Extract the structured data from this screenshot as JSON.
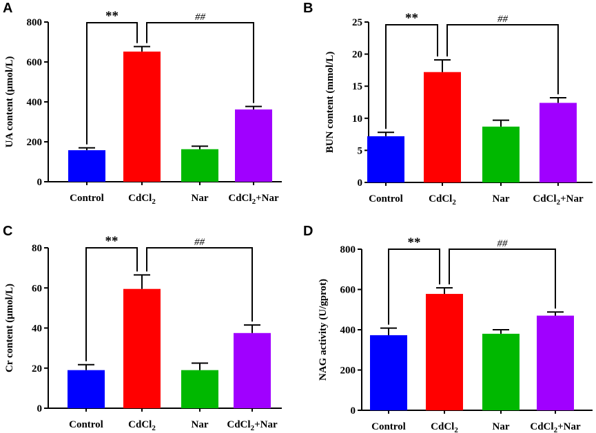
{
  "figure": {
    "bar_colors": [
      "#0000ff",
      "#ff0000",
      "#00b800",
      "#a000ff"
    ]
  },
  "chart_data": [
    {
      "panel": "A",
      "type": "bar",
      "ylabel": "UA content (μmol/L)",
      "categories": [
        {
          "main": "Control",
          "sub": "",
          "tail": ""
        },
        {
          "main": "CdCl",
          "sub": "2",
          "tail": ""
        },
        {
          "main": "Nar",
          "sub": "",
          "tail": ""
        },
        {
          "main": "CdCl",
          "sub": "2",
          "tail": "+Nar"
        }
      ],
      "values": [
        158,
        652,
        163,
        362
      ],
      "errors": [
        12,
        25,
        15,
        15
      ],
      "ylim": [
        0,
        800
      ],
      "yticks": [
        0,
        200,
        400,
        600,
        800
      ],
      "significance": [
        {
          "from": 0,
          "to": 1,
          "label": "**"
        },
        {
          "from": 1,
          "to": 3,
          "label": "##"
        }
      ]
    },
    {
      "panel": "B",
      "type": "bar",
      "ylabel": "BUN content (mmol/L)",
      "categories": [
        {
          "main": "Control",
          "sub": "",
          "tail": ""
        },
        {
          "main": "CdCl",
          "sub": "2",
          "tail": ""
        },
        {
          "main": "Nar",
          "sub": "",
          "tail": ""
        },
        {
          "main": "CdCl",
          "sub": "2",
          "tail": "+Nar"
        }
      ],
      "values": [
        7.2,
        17.2,
        8.7,
        12.4
      ],
      "errors": [
        0.6,
        1.9,
        1.0,
        0.8
      ],
      "ylim": [
        0,
        25
      ],
      "yticks": [
        0,
        5,
        10,
        15,
        20,
        25
      ],
      "significance": [
        {
          "from": 0,
          "to": 1,
          "label": "**"
        },
        {
          "from": 1,
          "to": 3,
          "label": "##"
        }
      ]
    },
    {
      "panel": "C",
      "type": "bar",
      "ylabel": "Cr content (μmol/L)",
      "categories": [
        {
          "main": "Control",
          "sub": "",
          "tail": ""
        },
        {
          "main": "CdCl",
          "sub": "2",
          "tail": ""
        },
        {
          "main": "Nar",
          "sub": "",
          "tail": ""
        },
        {
          "main": "CdCl",
          "sub": "2",
          "tail": "+Nar"
        }
      ],
      "values": [
        19,
        59.5,
        19,
        37.5
      ],
      "errors": [
        2.7,
        7,
        3.5,
        4
      ],
      "ylim": [
        0,
        80
      ],
      "yticks": [
        0,
        20,
        40,
        60,
        80
      ],
      "significance": [
        {
          "from": 0,
          "to": 1,
          "label": "**"
        },
        {
          "from": 1,
          "to": 3,
          "label": "##"
        }
      ]
    },
    {
      "panel": "D",
      "type": "bar",
      "ylabel": "NAG activity (U/gprot)",
      "categories": [
        {
          "main": "Control",
          "sub": "",
          "tail": ""
        },
        {
          "main": "CdCl",
          "sub": "2",
          "tail": ""
        },
        {
          "main": "Nar",
          "sub": "",
          "tail": ""
        },
        {
          "main": "CdCl",
          "sub": "2",
          "tail": "+Nar"
        }
      ],
      "values": [
        373,
        578,
        380,
        470
      ],
      "errors": [
        35,
        30,
        20,
        18
      ],
      "ylim": [
        0,
        800
      ],
      "yticks": [
        0,
        200,
        400,
        600,
        800
      ],
      "significance": [
        {
          "from": 0,
          "to": 1,
          "label": "**"
        },
        {
          "from": 1,
          "to": 3,
          "label": "##"
        }
      ]
    }
  ]
}
